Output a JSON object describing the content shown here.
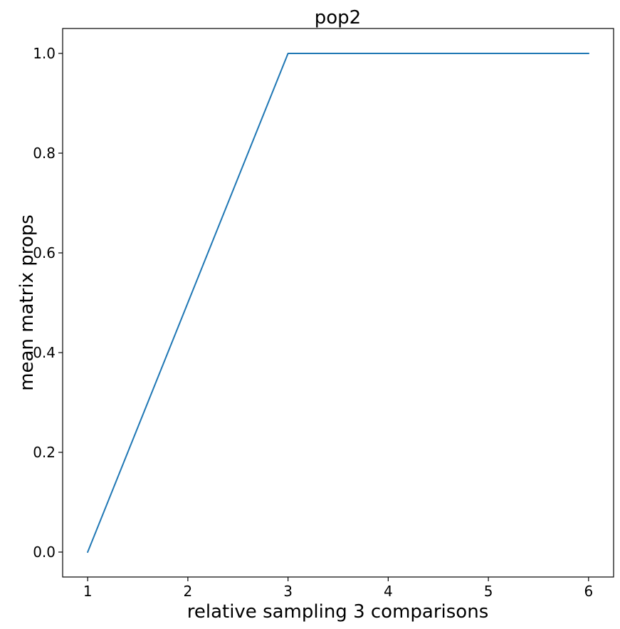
{
  "chart_data": {
    "type": "line",
    "title": "pop2",
    "xlabel": "relative sampling 3 comparisons",
    "ylabel": "mean matrix props",
    "x": [
      1,
      2,
      3,
      4,
      5,
      6
    ],
    "series": [
      {
        "values": [
          0.0,
          0.5,
          1.0,
          1.0,
          1.0,
          1.0
        ],
        "color": "#1f77b4"
      }
    ],
    "xlim": [
      0.75,
      6.25
    ],
    "ylim": [
      -0.05,
      1.05
    ],
    "xticks": [
      1,
      2,
      3,
      4,
      5,
      6
    ],
    "xtick_labels": [
      "1",
      "2",
      "3",
      "4",
      "5",
      "6"
    ],
    "yticks": [
      0.0,
      0.2,
      0.4,
      0.6,
      0.8,
      1.0
    ],
    "ytick_labels": [
      "0.0",
      "0.2",
      "0.4",
      "0.6",
      "0.8",
      "1.0"
    ],
    "grid": false,
    "legend": "none"
  }
}
